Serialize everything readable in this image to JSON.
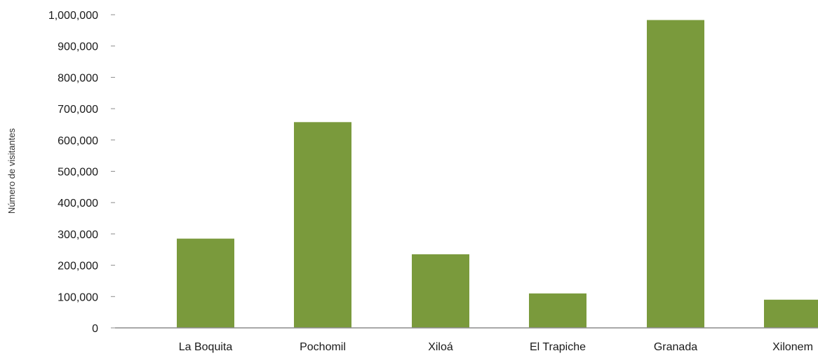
{
  "chart_data": {
    "type": "bar",
    "title": "",
    "xlabel": "",
    "ylabel": "Número de visitantes",
    "categories": [
      "La Boquita",
      "Pochomil",
      "Xiloá",
      "El Trapiche",
      "Granada",
      "Xilonem"
    ],
    "values": [
      285000,
      657000,
      235000,
      110000,
      983000,
      90000
    ],
    "ylim": [
      0,
      1000000
    ],
    "yticks": [
      0,
      100000,
      200000,
      300000,
      400000,
      500000,
      600000,
      700000,
      800000,
      900000,
      1000000
    ],
    "ytick_labels": [
      "0",
      "100,000",
      "200,000",
      "300,000",
      "400,000",
      "500,000",
      "600,000",
      "700,000",
      "800,000",
      "900,000",
      "1,000,000"
    ],
    "grid": false,
    "legend": "none",
    "colors": {
      "bar": "#7a9a3c",
      "axis": "#8c8c8c",
      "text": "#1a1a1a"
    }
  }
}
